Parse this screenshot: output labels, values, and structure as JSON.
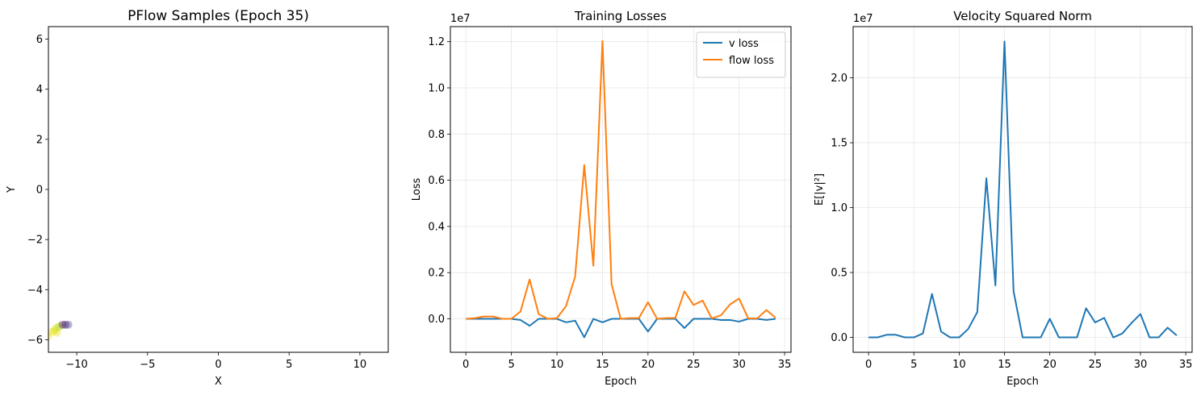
{
  "chart_data": [
    {
      "type": "scatter",
      "title": "PFlow Samples (Epoch 35)",
      "xlabel": "X",
      "ylabel": "Y",
      "xlim": [
        -12,
        12
      ],
      "ylim": [
        -6.5,
        6.5
      ],
      "xticks": [
        -10,
        -5,
        0,
        5,
        10
      ],
      "xtick_labels": [
        "−10",
        "−5",
        "0",
        "5",
        "10"
      ],
      "yticks": [
        -6,
        -4,
        -2,
        0,
        2,
        4,
        6
      ],
      "ytick_labels": [
        "−6",
        "−4",
        "−2",
        "0",
        "2",
        "4",
        "6"
      ],
      "grid": false,
      "points": [
        {
          "x": -12.0,
          "y": -5.85,
          "color": "#fde725"
        },
        {
          "x": -11.8,
          "y": -5.7,
          "color": "#fde725"
        },
        {
          "x": -11.6,
          "y": -5.65,
          "color": "#d8e219"
        },
        {
          "x": -11.5,
          "y": -5.55,
          "color": "#d8e219"
        },
        {
          "x": -11.3,
          "y": -5.5,
          "color": "#b5de2b"
        },
        {
          "x": -11.4,
          "y": -5.72,
          "color": "#e5e419"
        },
        {
          "x": -11.2,
          "y": -5.45,
          "color": "#c2df23"
        },
        {
          "x": -11.0,
          "y": -5.4,
          "color": "#482878"
        },
        {
          "x": -10.8,
          "y": -5.4,
          "color": "#440154"
        },
        {
          "x": -10.6,
          "y": -5.4,
          "color": "#3e4989"
        }
      ]
    },
    {
      "type": "line",
      "title": "Training Losses",
      "xlabel": "Epoch",
      "ylabel": "Loss",
      "offset_label": "1e7",
      "xlim": [
        -1.7,
        35.7
      ],
      "ylim": [
        -0.1448,
        1.2652
      ],
      "xticks": [
        0,
        5,
        10,
        15,
        20,
        25,
        30,
        35
      ],
      "xtick_labels": [
        "0",
        "5",
        "10",
        "15",
        "20",
        "25",
        "30",
        "35"
      ],
      "yticks": [
        0.0,
        0.2,
        0.4,
        0.6,
        0.8,
        1.0,
        1.2
      ],
      "ytick_labels": [
        "0.0",
        "0.2",
        "0.4",
        "0.6",
        "0.8",
        "1.0",
        "1.2"
      ],
      "grid": true,
      "legend_position": "top-right",
      "x": [
        0,
        1,
        2,
        3,
        4,
        5,
        6,
        7,
        8,
        9,
        10,
        11,
        12,
        13,
        14,
        15,
        16,
        17,
        18,
        19,
        20,
        21,
        22,
        23,
        24,
        25,
        26,
        27,
        28,
        29,
        30,
        31,
        32,
        33,
        34
      ],
      "series": [
        {
          "name": "v loss",
          "color": "#1f77b4",
          "values": [
            0,
            0,
            0,
            0,
            0,
            0,
            -0.005,
            -0.03,
            0,
            0,
            0,
            -0.015,
            -0.008,
            -0.08,
            0,
            -0.015,
            0,
            0,
            0,
            0,
            -0.055,
            0,
            0,
            0,
            -0.04,
            0,
            0,
            0,
            -0.005,
            -0.005,
            -0.012,
            0,
            0,
            -0.005,
            0
          ]
        },
        {
          "name": "flow loss",
          "color": "#ff7f0e",
          "values": [
            0,
            0.003,
            0.01,
            0.01,
            0,
            0,
            0.032,
            0.17,
            0.02,
            0,
            0.003,
            0.055,
            0.183,
            0.666,
            0.23,
            1.203,
            0.15,
            0,
            0.003,
            0.003,
            0.072,
            0,
            0.003,
            0.004,
            0.119,
            0.06,
            0.079,
            0.002,
            0.015,
            0.062,
            0.088,
            0.002,
            0.002,
            0.038,
            0.005
          ]
        }
      ]
    },
    {
      "type": "line",
      "title": "Velocity Squared Norm",
      "xlabel": "Epoch",
      "ylabel": "E[|v|²]",
      "offset_label": "1e7",
      "xlim": [
        -1.7,
        35.7
      ],
      "ylim": [
        -0.1148,
        2.3948
      ],
      "xticks": [
        0,
        5,
        10,
        15,
        20,
        25,
        30,
        35
      ],
      "xtick_labels": [
        "0",
        "5",
        "10",
        "15",
        "20",
        "25",
        "30",
        "35"
      ],
      "yticks": [
        0.0,
        0.5,
        1.0,
        1.5,
        2.0
      ],
      "ytick_labels": [
        "0.0",
        "0.5",
        "1.0",
        "1.5",
        "2.0"
      ],
      "grid": true,
      "x": [
        0,
        1,
        2,
        3,
        4,
        5,
        6,
        7,
        8,
        9,
        10,
        11,
        12,
        13,
        14,
        15,
        16,
        17,
        18,
        19,
        20,
        21,
        22,
        23,
        24,
        25,
        26,
        27,
        28,
        29,
        30,
        31,
        32,
        33,
        34
      ],
      "series": [
        {
          "color": "#1f77b4",
          "values": [
            0,
            0,
            0.02,
            0.02,
            0,
            0,
            0.03,
            0.335,
            0.045,
            0,
            0,
            0.065,
            0.195,
            1.226,
            0.4,
            2.28,
            0.355,
            0,
            0,
            0,
            0.143,
            0,
            0,
            0,
            0.224,
            0.115,
            0.15,
            0,
            0.03,
            0.11,
            0.18,
            0,
            0,
            0.075,
            0.015
          ]
        }
      ]
    }
  ]
}
